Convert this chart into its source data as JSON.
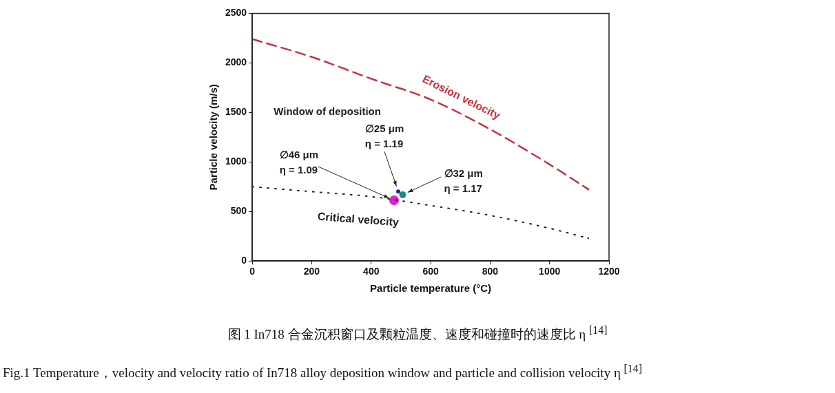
{
  "chart_data": {
    "type": "line",
    "xlabel": "Particle temperature (°C)",
    "ylabel": "Particle velocity (m/s)",
    "xlim": [
      0,
      1200
    ],
    "ylim": [
      0,
      2500
    ],
    "xticks": [
      0,
      200,
      400,
      600,
      800,
      1000,
      1200
    ],
    "yticks": [
      0,
      500,
      1000,
      1500,
      2000,
      2500
    ],
    "series": [
      {
        "name": "Erosion velocity",
        "color": "#c8323c",
        "line_style": "dashed",
        "marker": "none",
        "x": [
          0,
          200,
          400,
          600,
          800,
          1000,
          1130
        ],
        "values": [
          2240,
          2060,
          1840,
          1630,
          1330,
          975,
          725
        ]
      },
      {
        "name": "Critical velocity",
        "color": "#222222",
        "line_style": "dotted",
        "marker": "none",
        "x": [
          0,
          200,
          400,
          600,
          800,
          1000,
          1130
        ],
        "values": [
          750,
          700,
          650,
          560,
          460,
          330,
          230
        ]
      },
      {
        "type": "scatter",
        "marker": "circle",
        "color": "#e020d0",
        "x": [
          477
        ],
        "values": [
          612
        ]
      },
      {
        "type": "scatter",
        "marker": "circle",
        "color": "#1a2aa0",
        "x": [
          491
        ],
        "values": [
          702
        ]
      },
      {
        "type": "scatter",
        "marker": "circle",
        "color": "#1a8a80",
        "x": [
          506
        ],
        "values": [
          669
        ]
      }
    ],
    "annotations": [
      "Window of deposition",
      {
        "text": "∅46 μm\nη = 1.09",
        "x": 477,
        "y": 612
      },
      {
        "text": "∅25 μm\nη = 1.19",
        "x": 491,
        "y": 702
      },
      {
        "text": "∅32 μm\nη = 1.17",
        "x": 506,
        "y": 669
      },
      "图 1 In718 合金沉积窗口及颗粒温度、速度和碰撞时的速度比 η $^{[14]}$",
      "Fig.1 Temperature，velocity and velocity ratio of In718 alloy deposition window and particle and collision velocity η $^{[14]}$"
    ]
  }
}
